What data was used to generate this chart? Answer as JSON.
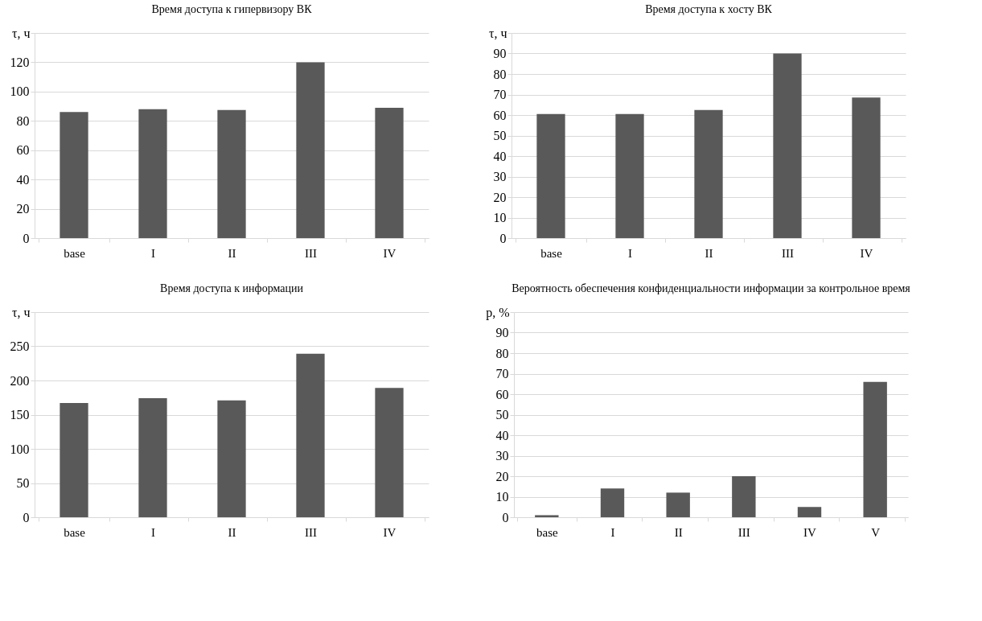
{
  "chart_data": [
    {
      "type": "bar",
      "title": "Время доступа к гипервизору ВК",
      "ylabel": "τ,  ч",
      "categories": [
        "base",
        "I",
        "II",
        "III",
        "IV"
      ],
      "values": [
        86,
        88,
        87.5,
        120,
        89
      ],
      "color": "#595959",
      "ylim": [
        0,
        140
      ],
      "yticks": [
        0,
        20,
        40,
        60,
        80,
        100,
        120,
        {
          "value": 140,
          "label": null
        }
      ],
      "grid": "y"
    },
    {
      "type": "bar",
      "title": "Время доступа к хосту ВК",
      "ylabel": "τ,  ч",
      "categories": [
        "base",
        "I",
        "II",
        "III",
        "IV"
      ],
      "values": [
        60.5,
        60.5,
        62.5,
        90,
        68.5
      ],
      "color": "#595959",
      "ylim": [
        0,
        100
      ],
      "yticks": [
        0,
        10,
        20,
        30,
        40,
        50,
        60,
        70,
        80,
        90,
        {
          "value": 100,
          "label": null
        }
      ],
      "grid": "y"
    },
    {
      "type": "bar",
      "title": "Время доступа к информации",
      "ylabel": "τ,  ч",
      "categories": [
        "base",
        "I",
        "II",
        "III",
        "IV"
      ],
      "values": [
        167,
        174,
        171,
        239,
        189
      ],
      "color": "#595959",
      "ylim": [
        0,
        300
      ],
      "yticks": [
        0,
        50,
        100,
        150,
        200,
        250,
        {
          "value": 300,
          "label": null
        }
      ],
      "grid": "y"
    },
    {
      "type": "bar",
      "title": "Вероятность обеспечения конфиденциальности информации\nза контрольное время",
      "ylabel": "p, %",
      "categories": [
        "base",
        "I",
        "II",
        "III",
        "IV",
        "V"
      ],
      "values": [
        1,
        14,
        12,
        20,
        5,
        66
      ],
      "color": "#595959",
      "ylim": [
        0,
        100
      ],
      "yticks": [
        0,
        10,
        20,
        30,
        40,
        50,
        60,
        70,
        80,
        90,
        {
          "value": 100,
          "label": null
        }
      ],
      "grid": "y"
    }
  ]
}
